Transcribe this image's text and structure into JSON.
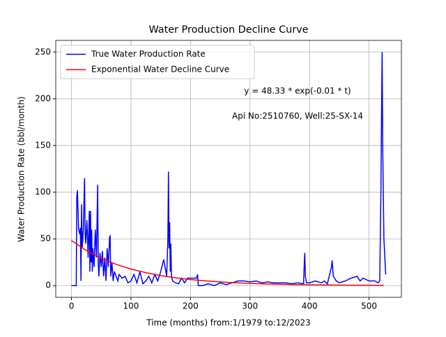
{
  "chart_data": {
    "type": "line",
    "title": "Water Production Decline Curve",
    "xlabel": "Time (months) from:1/1979 to:12/2023",
    "ylabel": "Water Production Rate (bbl/month)",
    "annotations": [
      "y = 48.33 * exp(-0.01 * t)",
      "Api No:2510760, Well:25-SX-14"
    ],
    "xlim": [
      -26.4,
      554.4
    ],
    "ylim": [
      -12.5,
      262.5
    ],
    "xticks": [
      0,
      100,
      200,
      300,
      400,
      500
    ],
    "yticks": [
      0,
      50,
      100,
      150,
      200,
      250
    ],
    "grid": true,
    "legend": "upper left",
    "series": [
      {
        "name": "True Water Production Rate",
        "color": "#0000ff",
        "x": [
          0,
          5,
          8,
          9,
          10,
          12,
          14,
          15,
          16,
          17,
          18,
          20,
          22,
          23,
          24,
          26,
          28,
          30,
          31,
          32,
          33,
          34,
          35,
          36,
          38,
          40,
          42,
          44,
          45,
          46,
          48,
          50,
          52,
          54,
          56,
          58,
          60,
          62,
          64,
          65,
          66,
          68,
          70,
          72,
          75,
          78,
          80,
          85,
          90,
          95,
          100,
          105,
          110,
          115,
          120,
          125,
          130,
          135,
          140,
          145,
          150,
          155,
          160,
          162,
          163,
          164,
          165,
          166,
          167,
          168,
          170,
          175,
          180,
          185,
          190,
          195,
          200,
          205,
          210,
          212,
          213,
          215,
          220,
          230,
          240,
          250,
          260,
          270,
          280,
          290,
          300,
          310,
          320,
          330,
          340,
          350,
          360,
          370,
          380,
          390,
          391,
          392,
          393,
          395,
          400,
          410,
          420,
          425,
          430,
          435,
          437,
          438,
          440,
          445,
          450,
          460,
          470,
          480,
          485,
          490,
          500,
          510,
          515,
          518,
          520,
          521,
          522,
          523,
          525,
          528
        ],
        "values": [
          0,
          0,
          0,
          95,
          102,
          60,
          55,
          62,
          5,
          87,
          40,
          60,
          115,
          55,
          45,
          70,
          30,
          80,
          15,
          80,
          25,
          60,
          15,
          40,
          20,
          60,
          30,
          108,
          25,
          10,
          35,
          20,
          37,
          10,
          30,
          5,
          40,
          20,
          52,
          53,
          10,
          25,
          5,
          15,
          10,
          5,
          12,
          8,
          10,
          3,
          5,
          12,
          3,
          15,
          2,
          5,
          10,
          3,
          12,
          5,
          15,
          28,
          10,
          50,
          122,
          40,
          68,
          15,
          45,
          10,
          5,
          3,
          2,
          8,
          3,
          8,
          8,
          8,
          8,
          12,
          0,
          0,
          0,
          2,
          0,
          3,
          1,
          3,
          5,
          5,
          4,
          5,
          3,
          4,
          3,
          3,
          3,
          2,
          3,
          2,
          20,
          35,
          10,
          3,
          3,
          5,
          3,
          5,
          2,
          15,
          20,
          27,
          10,
          5,
          3,
          5,
          8,
          10,
          5,
          8,
          5,
          5,
          3,
          5,
          100,
          180,
          250,
          150,
          50,
          12
        ]
      },
      {
        "name": "Exponential Water Decline Curve",
        "color": "#ff0000",
        "x": [
          0,
          25,
          50,
          75,
          100,
          125,
          150,
          175,
          200,
          225,
          250,
          275,
          300,
          325,
          350,
          375,
          400,
          425,
          450,
          475,
          500,
          525
        ],
        "values": [
          48.33,
          37.64,
          29.31,
          22.83,
          17.78,
          13.85,
          10.78,
          8.4,
          6.54,
          5.09,
          3.97,
          3.09,
          2.41,
          1.87,
          1.46,
          1.14,
          0.89,
          0.69,
          0.54,
          0.42,
          0.33,
          0.25
        ]
      }
    ]
  }
}
